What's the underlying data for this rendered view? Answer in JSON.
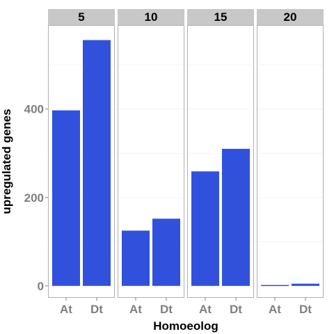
{
  "chart_data": {
    "type": "bar",
    "facet_by": "time",
    "facets": [
      {
        "label": "5",
        "categories": [
          "At",
          "Dt"
        ],
        "values": [
          397,
          556
        ]
      },
      {
        "label": "10",
        "categories": [
          "At",
          "Dt"
        ],
        "values": [
          125,
          152
        ]
      },
      {
        "label": "15",
        "categories": [
          "At",
          "Dt"
        ],
        "values": [
          259,
          310
        ]
      },
      {
        "label": "20",
        "categories": [
          "At",
          "Dt"
        ],
        "values": [
          2,
          5
        ]
      }
    ],
    "xlabel": "Homoeolog",
    "ylabel": "upregulated genes",
    "ylim": [
      -27,
      590
    ],
    "yticks": [
      0,
      200,
      400
    ],
    "grid": true,
    "legend": "none",
    "colors": {
      "bar": "#3151dd",
      "strip_bg": "#c8c8c8",
      "panel_border": "#b0b0b0",
      "grid": "#f2f2f2",
      "tick_label": "#7f7f7f"
    }
  }
}
